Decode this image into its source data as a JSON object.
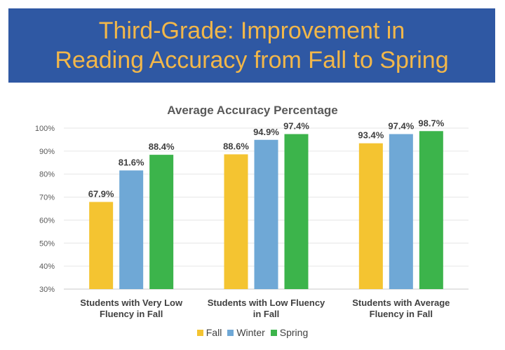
{
  "banner": {
    "title_line1": "Third-Grade: Improvement in",
    "title_line2": "Reading Accuracy from Fall to Spring"
  },
  "chart_data": {
    "type": "bar",
    "title": "Average Accuracy Percentage",
    "categories": [
      [
        "Students with Very Low",
        "Fluency in Fall"
      ],
      [
        "Students with Low Fluency",
        "in Fall"
      ],
      [
        "Students with Average",
        "Fluency in Fall"
      ]
    ],
    "series": [
      {
        "name": "Fall",
        "color": "#f4c431",
        "values": [
          67.9,
          88.6,
          93.4
        ],
        "labels": [
          "67.9%",
          "88.6%",
          "93.4%"
        ]
      },
      {
        "name": "Winter",
        "color": "#6fa8d6",
        "values": [
          81.6,
          94.9,
          97.4
        ],
        "labels": [
          "81.6%",
          "94.9%",
          "97.4%"
        ]
      },
      {
        "name": "Spring",
        "color": "#3cb44b",
        "values": [
          88.4,
          97.4,
          98.7
        ],
        "labels": [
          "88.4%",
          "97.4%",
          "98.7%"
        ]
      }
    ],
    "ylim": [
      30,
      100
    ],
    "yticks": [
      30,
      40,
      50,
      60,
      70,
      80,
      90,
      100
    ],
    "ytick_labels": [
      "30%",
      "40%",
      "50%",
      "60%",
      "70%",
      "80%",
      "90%",
      "100%"
    ],
    "grid": true,
    "legend": "bottom",
    "xlabel": "",
    "ylabel": ""
  }
}
